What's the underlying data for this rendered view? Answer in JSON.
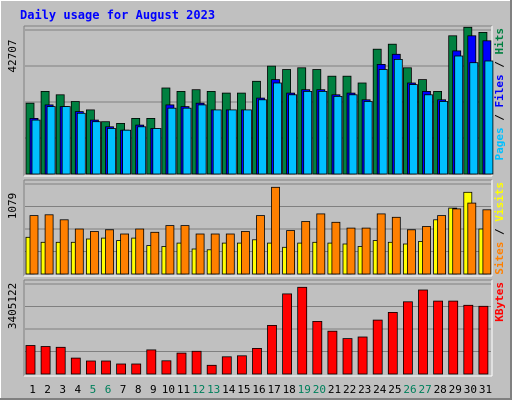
{
  "chart_data": {
    "type": "bar",
    "title": "Daily usage for August 2023",
    "categories": [
      "1",
      "2",
      "3",
      "4",
      "5",
      "6",
      "7",
      "8",
      "9",
      "10",
      "11",
      "12",
      "13",
      "14",
      "15",
      "16",
      "17",
      "18",
      "19",
      "20",
      "21",
      "22",
      "23",
      "24",
      "25",
      "26",
      "27",
      "28",
      "29",
      "30",
      "31"
    ],
    "weekend_days": [
      "5",
      "6",
      "12",
      "13",
      "19",
      "20",
      "26",
      "27"
    ],
    "colors": {
      "hits": "#008040",
      "files": "#0000ff",
      "pages": "#00c0ff",
      "visits": "#ffff00",
      "sites": "#ff8000",
      "kbytes": "#ff0000",
      "weekend_label": "#00805c",
      "weekday_label": "#000000",
      "title": "#0000ff",
      "plot_bg": "#c0c0c0",
      "grid": "#808080"
    },
    "panels": [
      {
        "id": "hits-files-pages",
        "max_label": "42707",
        "ylim": [
          0,
          42707
        ],
        "legend": [
          {
            "text": "Pages",
            "color": "#00c0ff"
          },
          {
            "text": " / ",
            "color": "#000000"
          },
          {
            "text": "Files",
            "color": "#0000ff"
          },
          {
            "text": " / ",
            "color": "#000000"
          },
          {
            "text": "Hits",
            "color": "#008040"
          }
        ],
        "series": [
          {
            "name": "Hits",
            "color": "#008040",
            "values": [
              21000,
              24500,
              23500,
              21500,
              19000,
              15500,
              15000,
              16500,
              16500,
              25500,
              24500,
              25000,
              24500,
              24000,
              24000,
              27500,
              32000,
              31000,
              31500,
              31000,
              29000,
              29000,
              27000,
              37000,
              38500,
              31500,
              28000,
              24500,
              41000,
              43500,
              42000
            ]
          },
          {
            "name": "Files",
            "color": "#0000ff",
            "values": [
              16500,
              20500,
              20000,
              18500,
              16000,
              14000,
              13000,
              14500,
              13500,
              20500,
              20000,
              21000,
              19000,
              19000,
              19000,
              22500,
              28000,
              24000,
              25000,
              25000,
              23500,
              24000,
              22000,
              32500,
              35500,
              27000,
              24500,
              22000,
              36500,
              41000,
              39500
            ]
          },
          {
            "name": "Pages",
            "color": "#00c0ff",
            "values": [
              16000,
              20000,
              20000,
              18000,
              15500,
              13500,
              13000,
              14000,
              13500,
              19500,
              19500,
              20500,
              19000,
              19000,
              19000,
              22000,
              27000,
              23500,
              24500,
              24500,
              23000,
              23500,
              21500,
              31000,
              34000,
              26500,
              23500,
              21500,
              35000,
              33000,
              33500
            ]
          }
        ]
      },
      {
        "id": "visits-sites",
        "max_label": "1079",
        "ylim": [
          0,
          1079
        ],
        "legend": [
          {
            "text": "Sites",
            "color": "#ff8000"
          },
          {
            "text": " / ",
            "color": "#000000"
          },
          {
            "text": "Visits",
            "color": "#ffff00"
          }
        ],
        "series": [
          {
            "name": "Visits",
            "color": "#ffff00",
            "values": [
              440,
              380,
              380,
              380,
              420,
              430,
              400,
              430,
              340,
              330,
              370,
              300,
              290,
              370,
              370,
              410,
              370,
              320,
              370,
              380,
              370,
              360,
              330,
              400,
              380,
              360,
              390,
              650,
              790,
              980,
              540
            ]
          },
          {
            "name": "Sites",
            "color": "#ff8000",
            "values": [
              700,
              710,
              650,
              540,
              510,
              530,
              480,
              540,
              500,
              580,
              580,
              480,
              480,
              480,
              510,
              700,
              1040,
              520,
              630,
              720,
              620,
              550,
              550,
              720,
              680,
              530,
              570,
              700,
              780,
              850,
              770
            ]
          }
        ]
      },
      {
        "id": "kbytes",
        "max_label": "3405122",
        "ylim": [
          0,
          3405122
        ],
        "legend": [
          {
            "text": "KBytes",
            "color": "#ff0000"
          }
        ],
        "series": [
          {
            "name": "KBytes",
            "color": "#ff0000",
            "values": [
              1080000,
              1040000,
              1010000,
              600000,
              490000,
              490000,
              380000,
              380000,
              910000,
              500000,
              790000,
              860000,
              330000,
              650000,
              690000,
              970000,
              1840000,
              3030000,
              3280000,
              1990000,
              1620000,
              1340000,
              1400000,
              2040000,
              2330000,
              2730000,
              3180000,
              2760000,
              2760000,
              2600000,
              2560000
            ]
          }
        ]
      }
    ]
  }
}
